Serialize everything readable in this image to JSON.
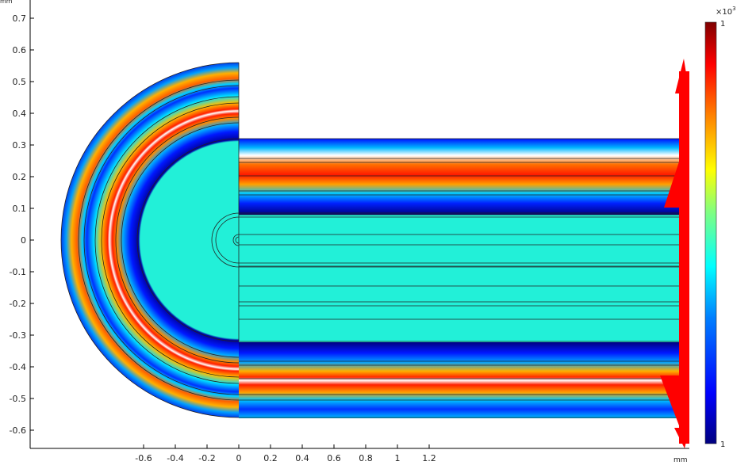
{
  "axes": {
    "x_unit": "mm",
    "y_unit": "mm",
    "x_ticks": [
      "-0.6",
      "-0.4",
      "-0.2",
      "0",
      "0.2",
      "0.4",
      "0.6",
      "0.8",
      "1",
      "1.2"
    ],
    "y_ticks": [
      "0.7",
      "0.6",
      "0.5",
      "0.4",
      "0.3",
      "0.2",
      "0.1",
      "0",
      "-0.1",
      "-0.2",
      "-0.3",
      "-0.4",
      "-0.5",
      "-0.6"
    ]
  },
  "colorbar": {
    "multiplier_base": "×10",
    "multiplier_exp": "3",
    "max_label": "1",
    "min_label": "1",
    "colors": [
      "#00007f",
      "#0000ff",
      "#0080ff",
      "#00ffff",
      "#80ff80",
      "#ffff00",
      "#ff8000",
      "#ff0000",
      "#7f0000"
    ]
  },
  "field_colors": {
    "core": "#22f0d8",
    "outer": "#1a0bff",
    "hot": "#ff2000",
    "arrow": "#ff0000"
  }
}
